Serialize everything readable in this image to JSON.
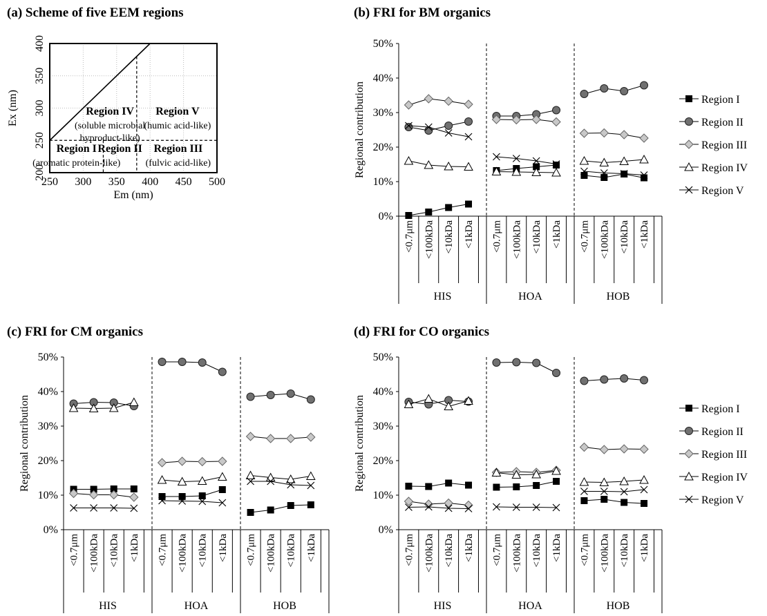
{
  "chart_data": [
    {
      "panel": "a",
      "type": "diagram",
      "title": "(a) Scheme of five EEM regions",
      "xlabel": "Em (nm)",
      "ylabel": "Ex (nm)",
      "xlim": [
        250,
        500
      ],
      "ylim": [
        200,
        400
      ],
      "xticks": [
        "250",
        "300",
        "350",
        "400",
        "450",
        "500"
      ],
      "yticks": [
        "200",
        "250",
        "300",
        "350",
        "400"
      ],
      "grid": "dotted",
      "boundaries": {
        "diagonal": [
          [
            250,
            250
          ],
          [
            400,
            400
          ]
        ],
        "ex_split": 250,
        "em_split_low": 330,
        "em_split_high": 380
      },
      "regions": [
        {
          "name": "Region I",
          "desc": "(aromatic protein-like)"
        },
        {
          "name": "Region II",
          "desc": ""
        },
        {
          "name": "Region III",
          "desc": "(fulvic acid-like)"
        },
        {
          "name": "Region IV",
          "desc": "(soluble microbial",
          "desc2": "byproduct-like)"
        },
        {
          "name": "Region V",
          "desc": "(humic acid-like)"
        }
      ]
    },
    {
      "panel": "b",
      "type": "line",
      "title": "(b) FRI for BM organics",
      "ylabel": "Regional contribution",
      "ylim": [
        0,
        50
      ],
      "yticks": [
        "0%",
        "10%",
        "20%",
        "30%",
        "40%",
        "50%"
      ],
      "groups": [
        "HIS",
        "HOA",
        "HOB"
      ],
      "categories": [
        "<0.7μm",
        "<100kDa",
        "<10kDa",
        "<1kDa"
      ],
      "legend": "right",
      "series": [
        {
          "name": "Region I",
          "values": [
            [
              0.2,
              1.2,
              2.5,
              3.5
            ],
            [
              13.2,
              13.8,
              14.3,
              14.8
            ],
            [
              11.8,
              11.2,
              12.2,
              11.1
            ]
          ]
        },
        {
          "name": "Region II",
          "values": [
            [
              25.8,
              24.8,
              26.2,
              27.4
            ],
            [
              29.0,
              29.0,
              29.5,
              30.7
            ],
            [
              35.4,
              37.0,
              36.2,
              37.9
            ]
          ]
        },
        {
          "name": "Region III",
          "values": [
            [
              32.2,
              34.0,
              33.3,
              32.4
            ],
            [
              28.0,
              27.9,
              28.0,
              27.3
            ],
            [
              24.0,
              24.1,
              23.6,
              22.6
            ]
          ]
        },
        {
          "name": "Region IV",
          "values": [
            [
              16.0,
              14.8,
              14.4,
              14.3
            ],
            [
              12.9,
              12.8,
              12.7,
              12.6
            ],
            [
              16.0,
              15.5,
              15.9,
              16.4
            ]
          ]
        },
        {
          "name": "Region V",
          "values": [
            [
              26.2,
              25.8,
              24.1,
              23.0
            ],
            [
              17.2,
              16.7,
              16.0,
              15.1
            ],
            [
              13.0,
              12.5,
              12.3,
              11.9
            ]
          ]
        }
      ]
    },
    {
      "panel": "c",
      "type": "line",
      "title": "(c) FRI for CM organics",
      "ylabel": "Regional contribution",
      "ylim": [
        0,
        50
      ],
      "yticks": [
        "0%",
        "10%",
        "20%",
        "30%",
        "40%",
        "50%"
      ],
      "groups": [
        "HIS",
        "HOA",
        "HOB"
      ],
      "categories": [
        "<0.7μm",
        "<100kDa",
        "<10kDa",
        "<1kDa"
      ],
      "series": [
        {
          "name": "Region I",
          "values": [
            [
              11.7,
              11.7,
              11.8,
              11.8
            ],
            [
              9.6,
              9.6,
              9.8,
              11.6
            ],
            [
              5.0,
              5.7,
              7.0,
              7.2
            ]
          ]
        },
        {
          "name": "Region II",
          "values": [
            [
              36.5,
              36.9,
              36.8,
              35.8
            ],
            [
              48.6,
              48.6,
              48.4,
              45.7
            ],
            [
              38.5,
              39.0,
              39.4,
              37.7
            ]
          ]
        },
        {
          "name": "Region III",
          "values": [
            [
              10.5,
              10.1,
              10.1,
              9.4
            ],
            [
              19.4,
              19.8,
              19.7,
              19.8
            ],
            [
              27.0,
              26.4,
              26.4,
              26.8
            ]
          ]
        },
        {
          "name": "Region IV",
          "values": [
            [
              35.2,
              35.1,
              35.2,
              36.9
            ],
            [
              14.4,
              13.9,
              14.1,
              15.3
            ],
            [
              15.7,
              15.1,
              14.6,
              15.5
            ]
          ]
        },
        {
          "name": "Region V",
          "values": [
            [
              6.3,
              6.3,
              6.3,
              6.2
            ],
            [
              8.4,
              8.3,
              8.2,
              7.8
            ],
            [
              14.0,
              14.0,
              13.0,
              12.8
            ]
          ]
        }
      ]
    },
    {
      "panel": "d",
      "type": "line",
      "title": "(d) FRI for CO organics",
      "ylabel": "Regional contribution",
      "ylim": [
        0,
        50
      ],
      "yticks": [
        "0%",
        "10%",
        "20%",
        "30%",
        "40%",
        "50%"
      ],
      "groups": [
        "HIS",
        "HOA",
        "HOB"
      ],
      "categories": [
        "<0.7μm",
        "<100kDa",
        "<10kDa",
        "<1kDa"
      ],
      "legend": "right",
      "series": [
        {
          "name": "Region I",
          "values": [
            [
              12.6,
              12.5,
              13.5,
              12.9
            ],
            [
              12.3,
              12.4,
              12.8,
              14.0
            ],
            [
              8.4,
              8.8,
              7.9,
              7.6
            ]
          ]
        },
        {
          "name": "Region II",
          "values": [
            [
              37.0,
              36.3,
              37.5,
              37.1
            ],
            [
              48.4,
              48.5,
              48.3,
              45.4
            ],
            [
              43.1,
              43.5,
              43.8,
              43.3
            ]
          ]
        },
        {
          "name": "Region III",
          "values": [
            [
              8.2,
              7.4,
              7.7,
              7.1
            ],
            [
              16.6,
              16.8,
              16.6,
              17.2
            ],
            [
              23.9,
              23.2,
              23.4,
              23.3
            ]
          ]
        },
        {
          "name": "Region IV",
          "values": [
            [
              36.3,
              37.9,
              35.7,
              37.3
            ],
            [
              16.5,
              15.9,
              16.0,
              17.0
            ],
            [
              13.8,
              13.7,
              14.0,
              14.4
            ]
          ]
        },
        {
          "name": "Region V",
          "values": [
            [
              6.5,
              6.6,
              6.2,
              6.1
            ],
            [
              6.6,
              6.5,
              6.5,
              6.4
            ],
            [
              11.1,
              11.1,
              11.0,
              11.6
            ]
          ]
        }
      ]
    }
  ]
}
